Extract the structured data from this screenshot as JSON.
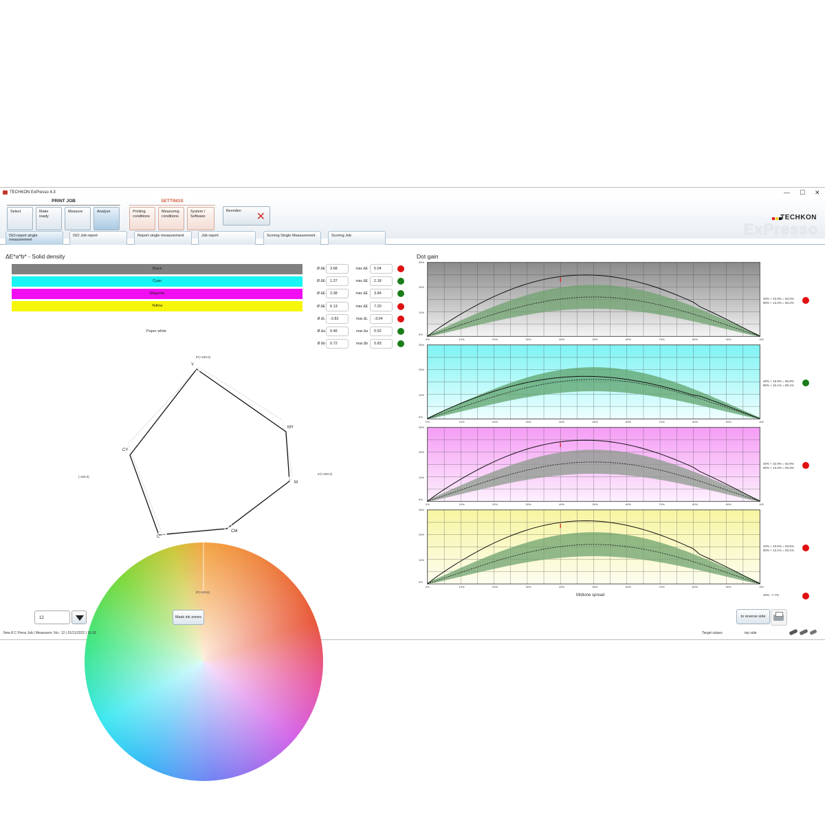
{
  "window": {
    "title": "TECHKON ExPresso 4.3",
    "controls": [
      "—",
      "☐",
      "✕"
    ]
  },
  "ribbon": {
    "groups": {
      "print_job": "PRINT JOB",
      "settings": "SETTINGS"
    },
    "buttons": [
      "Select",
      "Make ready",
      "Measure",
      "Analyze"
    ],
    "settings_buttons": [
      "Printing conditions",
      "Measuring conditions",
      "System / Software"
    ],
    "exit_button": "Beenden",
    "logo_top": "TECHKON",
    "logo_bottom": "ExPresso"
  },
  "tabs": [
    "ISO-report single measurement",
    "ISO Job report",
    "Report single measurement",
    "Job report",
    "Scoring Single Measurement",
    "Scoring Job"
  ],
  "left": {
    "title": "ΔE*a*b* - Solid density",
    "swatches": [
      {
        "label": "Black",
        "color": "#808080"
      },
      {
        "label": "Cyan",
        "color": "#19f4f4"
      },
      {
        "label": "Magenta",
        "color": "#f10ff1"
      },
      {
        "label": "Yellow",
        "color": "#f6f60a"
      }
    ],
    "paper_white": "Paper white",
    "metrics": [
      {
        "avg_label": "Ø ΔE",
        "avg": "3.68",
        "max_label": "max ΔE",
        "max": "5.04",
        "status": "#e01010"
      },
      {
        "avg_label": "Ø ΔE",
        "avg": "1.27",
        "max_label": "max ΔE",
        "max": "2.18",
        "status": "#1a7d1a"
      },
      {
        "avg_label": "Ø ΔE",
        "avg": "3.38",
        "max_label": "max ΔE",
        "max": "3.84",
        "status": "#1a7d1a"
      },
      {
        "avg_label": "Ø ΔE",
        "avg": "6.13",
        "max_label": "max ΔE",
        "max": "7.20",
        "status": "#e01010"
      },
      {
        "avg_label": "Ø ΔL",
        "avg": "-2.82",
        "max_label": "max ΔL",
        "max": "-3.04",
        "status": "#e01010"
      },
      {
        "avg_label": "Ø Δa",
        "avg": "0.46",
        "max_label": "max Δa",
        "max": "0.52",
        "status": "#1a7d1a"
      },
      {
        "avg_label": "Ø Δb",
        "avg": "0.72",
        "max_label": "max Δb",
        "max": "0.83",
        "status": "#1a7d1a"
      }
    ],
    "wheel": {
      "axis_top": "b*(+100.0)",
      "axis_bottom": "b*(-100.0)",
      "axis_left": "(-100.0)",
      "axis_right": "a*(+100.0)",
      "points": [
        "Y",
        "MY",
        "M",
        "CM",
        "C",
        "CY"
      ]
    },
    "selector_value": "12",
    "mask_button": "Mask ink zones"
  },
  "right": {
    "title": "Dot gain",
    "y_ticks": [
      "30%",
      "20%",
      "10%",
      "0%"
    ],
    "x_ticks": [
      "0%",
      "10%",
      "20%",
      "30%",
      "40%",
      "50%",
      "60%",
      "70%",
      "80%",
      "90%",
      "100"
    ],
    "x_axis_label": "Midtone spread",
    "charts": [
      {
        "name": "Black",
        "bg_top": "#8a8a8a",
        "bg_bottom": "#f4f4f4",
        "band": "#6fa26f",
        "legend": [
          "40% + 23.0% = 63.0%",
          "80% + 13.2% = 93.2%"
        ],
        "status": "#e01010",
        "measured_40": 23.0,
        "measured_80": 13.2,
        "red_mark": true
      },
      {
        "name": "Cyan",
        "bg_top": "#7ef3f3",
        "bg_bottom": "#f0ffff",
        "band": "#5fa36c",
        "legend": [
          "40% + 15.9% = 55.9%",
          "80% + 10.1% = 90.1%"
        ],
        "status": "#1a7d1a",
        "measured_40": 15.9,
        "measured_80": 10.1,
        "red_mark": false
      },
      {
        "name": "Magenta",
        "bg_top": "#f59cf5",
        "bg_bottom": "#fdf0fd",
        "band": "#8b9a8b",
        "legend": [
          "40% + 22.9% = 62.9%",
          "80% + 13.3% = 93.3%"
        ],
        "status": "#e01010",
        "measured_40": 22.9,
        "measured_80": 13.3,
        "red_mark": true
      },
      {
        "name": "Yellow",
        "bg_top": "#f7f5a0",
        "bg_bottom": "#fdfdf0",
        "band": "#6fa26f",
        "legend": [
          "40% + 23.6% = 63.6%",
          "80% + 13.1% = 93.1%"
        ],
        "status": "#e01010",
        "measured_40": 23.6,
        "measured_80": 13.1,
        "red_mark": true
      }
    ],
    "midtone_spread": "40% : 7.7%",
    "midtone_status": "#e01010",
    "reverse_button": "to reverse side"
  },
  "status_bar": {
    "job": "New 8 C Press Job  |  Measurem. No.: 12  |  01/11/2022  |  16:18",
    "target": "Target values",
    "side": "top side"
  }
}
